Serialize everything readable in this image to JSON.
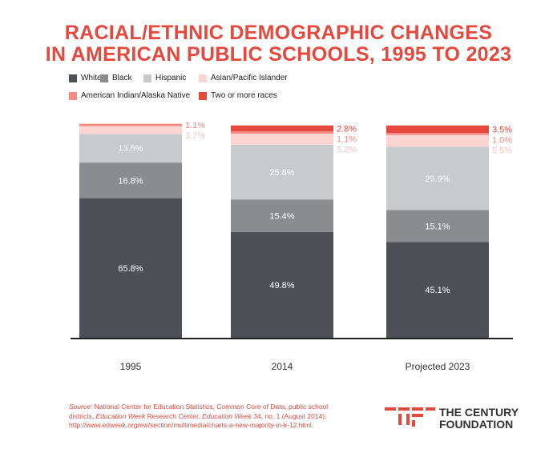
{
  "title": {
    "line1": "RACIAL/ETHNIC DEMOGRAPHIC CHANGES",
    "line2": "IN AMERICAN PUBLIC SCHOOLS, 1995 TO 2023"
  },
  "colors": {
    "White": "#4e5058",
    "Black": "#8a8c90",
    "Hispanic": "#c9cacc",
    "Asian/Pacific Islander": "#fcd4d1",
    "American Indian/Alaska Native": "#f28b83",
    "Two or more races": "#e5493d",
    "accent": "#e5493d"
  },
  "legend": [
    "White",
    "Black",
    "Hispanic",
    "Asian/Pacific Islander",
    "American Indian/Alaska Native",
    "Two or more races"
  ],
  "chart_data": {
    "type": "bar",
    "stacked": true,
    "categories": [
      "1995",
      "2014",
      "Projected 2023"
    ],
    "ylim": [
      0,
      100
    ],
    "series": [
      {
        "name": "White",
        "values": [
          65.8,
          49.8,
          45.1
        ],
        "labels": [
          "65.8%",
          "49.8%",
          "45.1%"
        ]
      },
      {
        "name": "Black",
        "values": [
          16.8,
          15.4,
          15.1
        ],
        "labels": [
          "16.8%",
          "15.4%",
          "15.1%"
        ]
      },
      {
        "name": "Hispanic",
        "values": [
          13.5,
          25.8,
          29.9
        ],
        "labels": [
          "13.5%",
          "25.8%",
          "29.9%"
        ]
      },
      {
        "name": "Asian/Pacific Islander",
        "values": [
          3.7,
          5.2,
          5.5
        ],
        "labels": [
          "3.7%",
          "5.2%",
          "5.5%"
        ]
      },
      {
        "name": "American Indian/Alaska Native",
        "values": [
          1.1,
          1.1,
          1.0
        ],
        "labels": [
          "1.1%",
          "1.1%",
          "1.0%"
        ]
      },
      {
        "name": "Two or more races",
        "values": [
          0,
          2.8,
          3.5
        ],
        "labels": [
          "",
          "2.8%",
          "3.5%"
        ]
      }
    ]
  },
  "source": {
    "label": "Source:",
    "text1": " National Center for Education Statistics, Common Core of Data, public school districts, ",
    "italic1": "Education Week",
    "text2": " Research Center. ",
    "italic2": "Education Week",
    "text3": " 34, no. 1 (August 2014). http://www.edweek.org/ew/section/multimedia/charts-a-new-majority-in-k-12.html."
  },
  "logo": {
    "line1": "THE CENTURY",
    "line2": "FOUNDATION"
  }
}
